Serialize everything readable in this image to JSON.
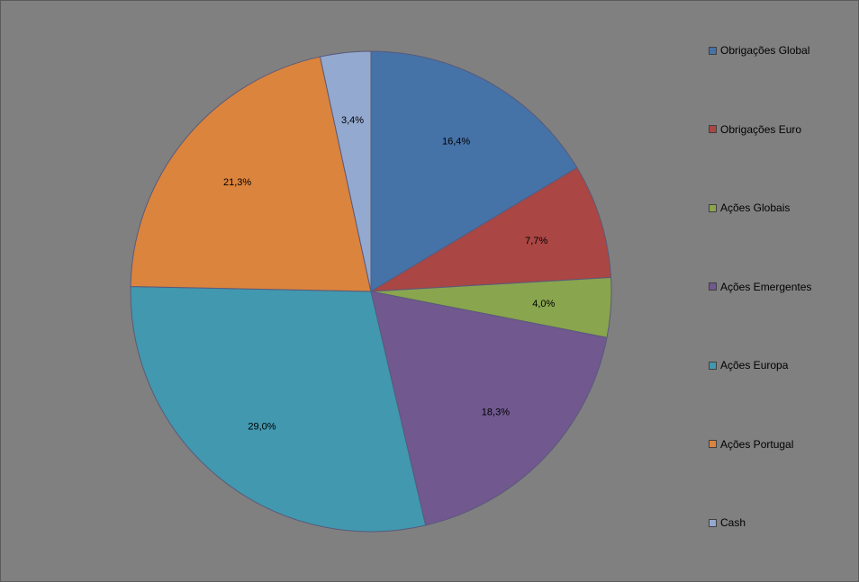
{
  "chart_data": {
    "type": "pie",
    "title": "",
    "start_angle_deg": 0,
    "direction": "clockwise",
    "legend_position": "right",
    "slices": [
      {
        "name": "Obrigações Global",
        "value": 16.4,
        "label": "16,4%",
        "color": "#4572A7"
      },
      {
        "name": "Obrigações Euro",
        "value": 7.7,
        "label": "7,7%",
        "color": "#AA4643"
      },
      {
        "name": "Ações Globais",
        "value": 4.0,
        "label": "4,0%",
        "color": "#89A54E"
      },
      {
        "name": "Ações Emergentes",
        "value": 18.3,
        "label": "18,3%",
        "color": "#71588F"
      },
      {
        "name": "Ações Europa",
        "value": 29.0,
        "label": "29,0%",
        "color": "#4198AF"
      },
      {
        "name": "Ações Portugal",
        "value": 21.3,
        "label": "21,3%",
        "color": "#DB843D"
      },
      {
        "name": "Cash",
        "value": 3.4,
        "label": "3,4%",
        "color": "#93A9CF"
      }
    ]
  }
}
